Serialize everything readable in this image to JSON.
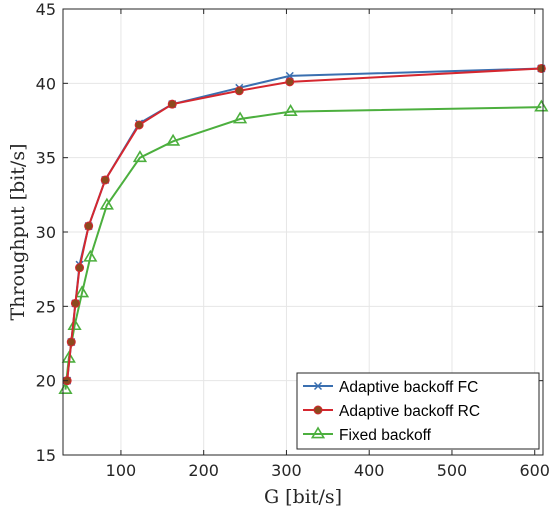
{
  "chart_data": {
    "type": "line",
    "title": "",
    "xlabel": "G [bit/s]",
    "ylabel": "Throughput [bit/s]",
    "xlim": [
      30,
      610
    ],
    "ylim": [
      15,
      45
    ],
    "xticks": [
      100,
      200,
      300,
      400,
      500,
      600
    ],
    "yticks": [
      15,
      20,
      25,
      30,
      35,
      40,
      45
    ],
    "grid": true,
    "legend_position": "bottom-right",
    "series": [
      {
        "name": "Adaptive backoff FC",
        "color": "#3a6fb0",
        "marker": "x",
        "x": [
          35,
          40,
          45,
          50,
          61,
          81,
          122,
          162,
          243,
          304,
          608
        ],
        "y": [
          20.0,
          22.6,
          25.2,
          27.8,
          30.4,
          33.5,
          37.3,
          38.6,
          39.7,
          40.5,
          41.0
        ]
      },
      {
        "name": "Adaptive backoff RC",
        "color": "#d5272f",
        "marker": "circle",
        "marker_face": "#8b4a1e",
        "x": [
          35,
          40,
          45,
          50,
          61,
          81,
          122,
          162,
          243,
          304,
          608
        ],
        "y": [
          20.0,
          22.6,
          25.2,
          27.6,
          30.4,
          33.5,
          37.2,
          38.6,
          39.5,
          40.1,
          41.0
        ]
      },
      {
        "name": "Fixed backoff",
        "color": "#4caf3e",
        "marker": "triangle",
        "x": [
          33,
          37,
          44,
          53,
          63,
          83,
          123,
          163,
          244,
          305,
          608
        ],
        "y": [
          19.4,
          21.5,
          23.7,
          25.9,
          28.3,
          31.8,
          35.0,
          36.1,
          37.6,
          38.1,
          38.4
        ]
      }
    ]
  }
}
